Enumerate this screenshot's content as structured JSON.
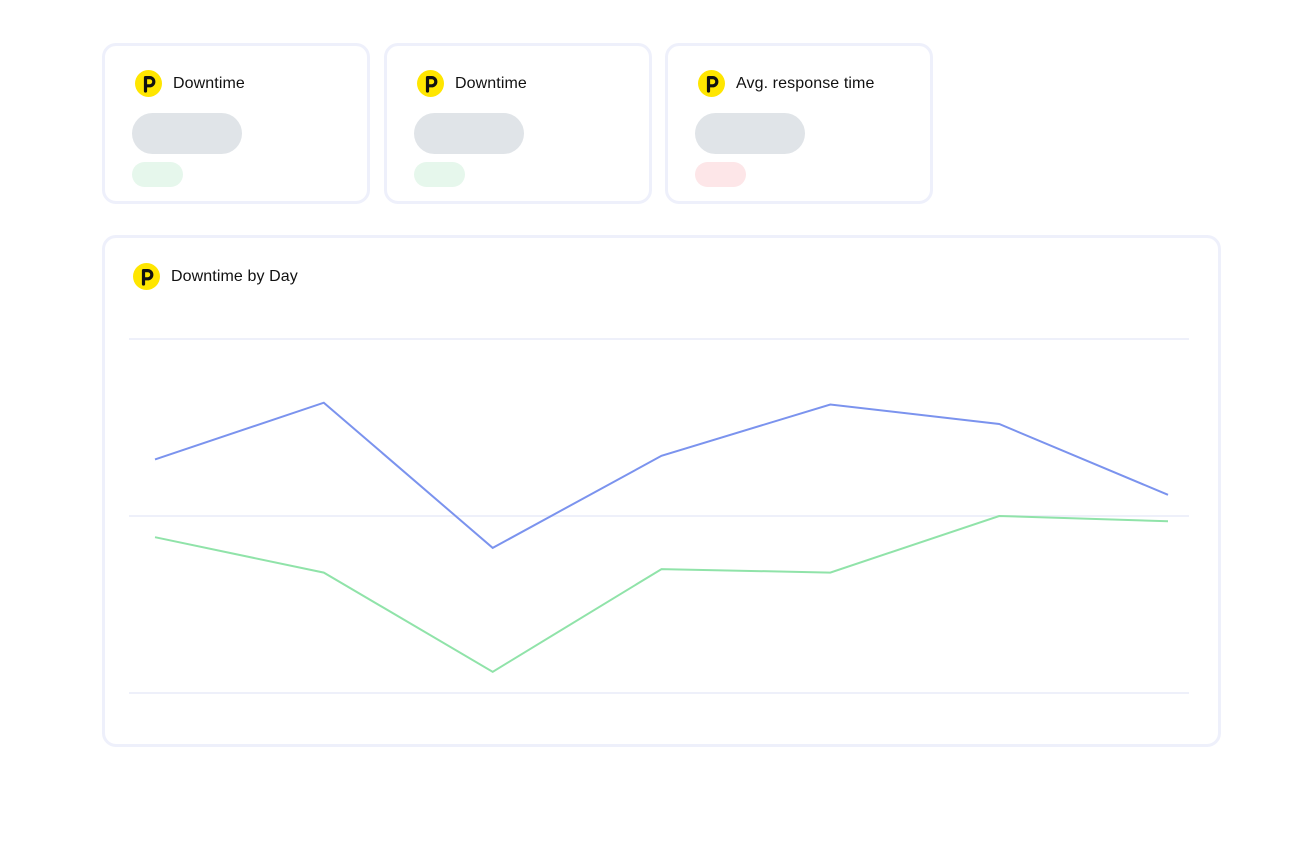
{
  "colors": {
    "logo": "#ffe600",
    "series_1": "#7b93ee",
    "series_2": "#90e3a9",
    "skeleton": "#e0e4e8",
    "delta_good": "#e6f7ec",
    "delta_bad": "#fde6e8",
    "card_border": "#eef0fb"
  },
  "stat_cards": [
    {
      "title": "Downtime",
      "icon": "logo-icon",
      "delta_state": "good"
    },
    {
      "title": "Downtime",
      "icon": "logo-icon",
      "delta_state": "good"
    },
    {
      "title": "Avg. response time",
      "icon": "logo-icon",
      "delta_state": "bad"
    }
  ],
  "chart_card": {
    "title": "Downtime by Day",
    "icon": "logo-icon"
  },
  "chart_data": {
    "type": "line",
    "title": "Downtime by Day",
    "xlabel": "",
    "ylabel": "",
    "ylim": [
      0,
      2
    ],
    "grid": true,
    "gridlines": [
      0,
      1,
      2
    ],
    "x": [
      1,
      2,
      3,
      4,
      5,
      6,
      7
    ],
    "series": [
      {
        "values": [
          1.32,
          1.64,
          0.82,
          1.34,
          1.63,
          1.52,
          1.12
        ]
      },
      {
        "values": [
          0.88,
          0.68,
          0.12,
          0.7,
          0.68,
          1.0,
          0.97
        ]
      }
    ]
  }
}
